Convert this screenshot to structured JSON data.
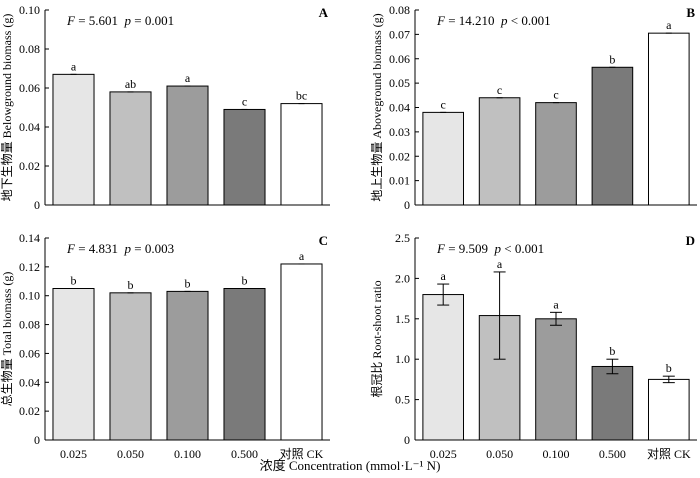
{
  "figure": {
    "xlabel": "浓度 Concentration (mmol·L⁻¹ N)",
    "categories": [
      "0.025",
      "0.050",
      "0.100",
      "0.500",
      "对照 CK"
    ],
    "bar_colors": [
      "#e6e6e6",
      "#c0c0c0",
      "#9c9c9c",
      "#7a7a7a",
      "#ffffff"
    ]
  },
  "chart_data": [
    {
      "type": "bar",
      "panel": "A",
      "ylabel": "地下生物量 Belowground biomass (g)",
      "stat_text": "F = 5.601  p = 0.001",
      "stat_label": "F",
      "stat_eq": " = 5.601  ",
      "p_label": "p",
      "p_eq": " = 0.001",
      "categories": [
        "0.025",
        "0.050",
        "0.100",
        "0.500",
        "对照 CK"
      ],
      "values": [
        0.067,
        0.058,
        0.061,
        0.049,
        0.052
      ],
      "errors": [
        0,
        0,
        0,
        0,
        0
      ],
      "letters": [
        "a",
        "ab",
        "a",
        "c",
        "bc"
      ],
      "ylim": [
        0,
        0.1
      ],
      "yticks": [
        0,
        0.02,
        0.04,
        0.06,
        0.08,
        0.1
      ],
      "ytick_labels": [
        "0",
        "0.02",
        "0.04",
        "0.06",
        "0.08",
        "0.10"
      ],
      "grid": false
    },
    {
      "type": "bar",
      "panel": "B",
      "ylabel": "地上生物量 Aboveground biomass (g)",
      "stat_text": "F = 14.210  p < 0.001",
      "stat_label": "F",
      "stat_eq": " = 14.210  ",
      "p_label": "p",
      "p_eq": " < 0.001",
      "categories": [
        "0.025",
        "0.050",
        "0.100",
        "0.500",
        "对照 CK"
      ],
      "values": [
        0.038,
        0.044,
        0.042,
        0.0565,
        0.0705
      ],
      "errors": [
        0,
        0,
        0,
        0,
        0
      ],
      "letters": [
        "c",
        "c",
        "c",
        "b",
        "a"
      ],
      "ylim": [
        0,
        0.08
      ],
      "yticks": [
        0,
        0.01,
        0.02,
        0.03,
        0.04,
        0.05,
        0.06,
        0.07,
        0.08
      ],
      "ytick_labels": [
        "0",
        "0.01",
        "0.02",
        "0.03",
        "0.04",
        "0.05",
        "0.06",
        "0.07",
        "0.08"
      ],
      "grid": false
    },
    {
      "type": "bar",
      "panel": "C",
      "ylabel": "总生物量 Total biomass (g)",
      "stat_text": "F = 4.831  p = 0.003",
      "stat_label": "F",
      "stat_eq": " = 4.831  ",
      "p_label": "p",
      "p_eq": " = 0.003",
      "categories": [
        "0.025",
        "0.050",
        "0.100",
        "0.500",
        "对照 CK"
      ],
      "values": [
        0.105,
        0.102,
        0.103,
        0.105,
        0.122
      ],
      "errors": [
        0,
        0,
        0,
        0,
        0
      ],
      "letters": [
        "b",
        "b",
        "b",
        "b",
        "a"
      ],
      "ylim": [
        0,
        0.14
      ],
      "yticks": [
        0,
        0.02,
        0.04,
        0.06,
        0.08,
        0.1,
        0.12,
        0.14
      ],
      "ytick_labels": [
        "0",
        "0.02",
        "0.04",
        "0.06",
        "0.08",
        "0.10",
        "0.12",
        "0.14"
      ],
      "grid": false
    },
    {
      "type": "bar",
      "panel": "D",
      "ylabel": "根冠比 Root-shoot ratio",
      "stat_text": "F = 9.509  p < 0.001",
      "stat_label": "F",
      "stat_eq": " = 9.509  ",
      "p_label": "p",
      "p_eq": " < 0.001",
      "categories": [
        "0.025",
        "0.050",
        "0.100",
        "0.500",
        "对照 CK"
      ],
      "values": [
        1.8,
        1.54,
        1.5,
        0.91,
        0.75
      ],
      "errors": [
        0.13,
        0.54,
        0.08,
        0.09,
        0.04
      ],
      "letters": [
        "a",
        "a",
        "a",
        "b",
        "b"
      ],
      "ylim": [
        0,
        2.5
      ],
      "yticks": [
        0,
        0.5,
        1.0,
        1.5,
        2.0,
        2.5
      ],
      "ytick_labels": [
        "0",
        "0.5",
        "1.0",
        "1.5",
        "2.0",
        "2.5"
      ],
      "grid": false
    }
  ]
}
